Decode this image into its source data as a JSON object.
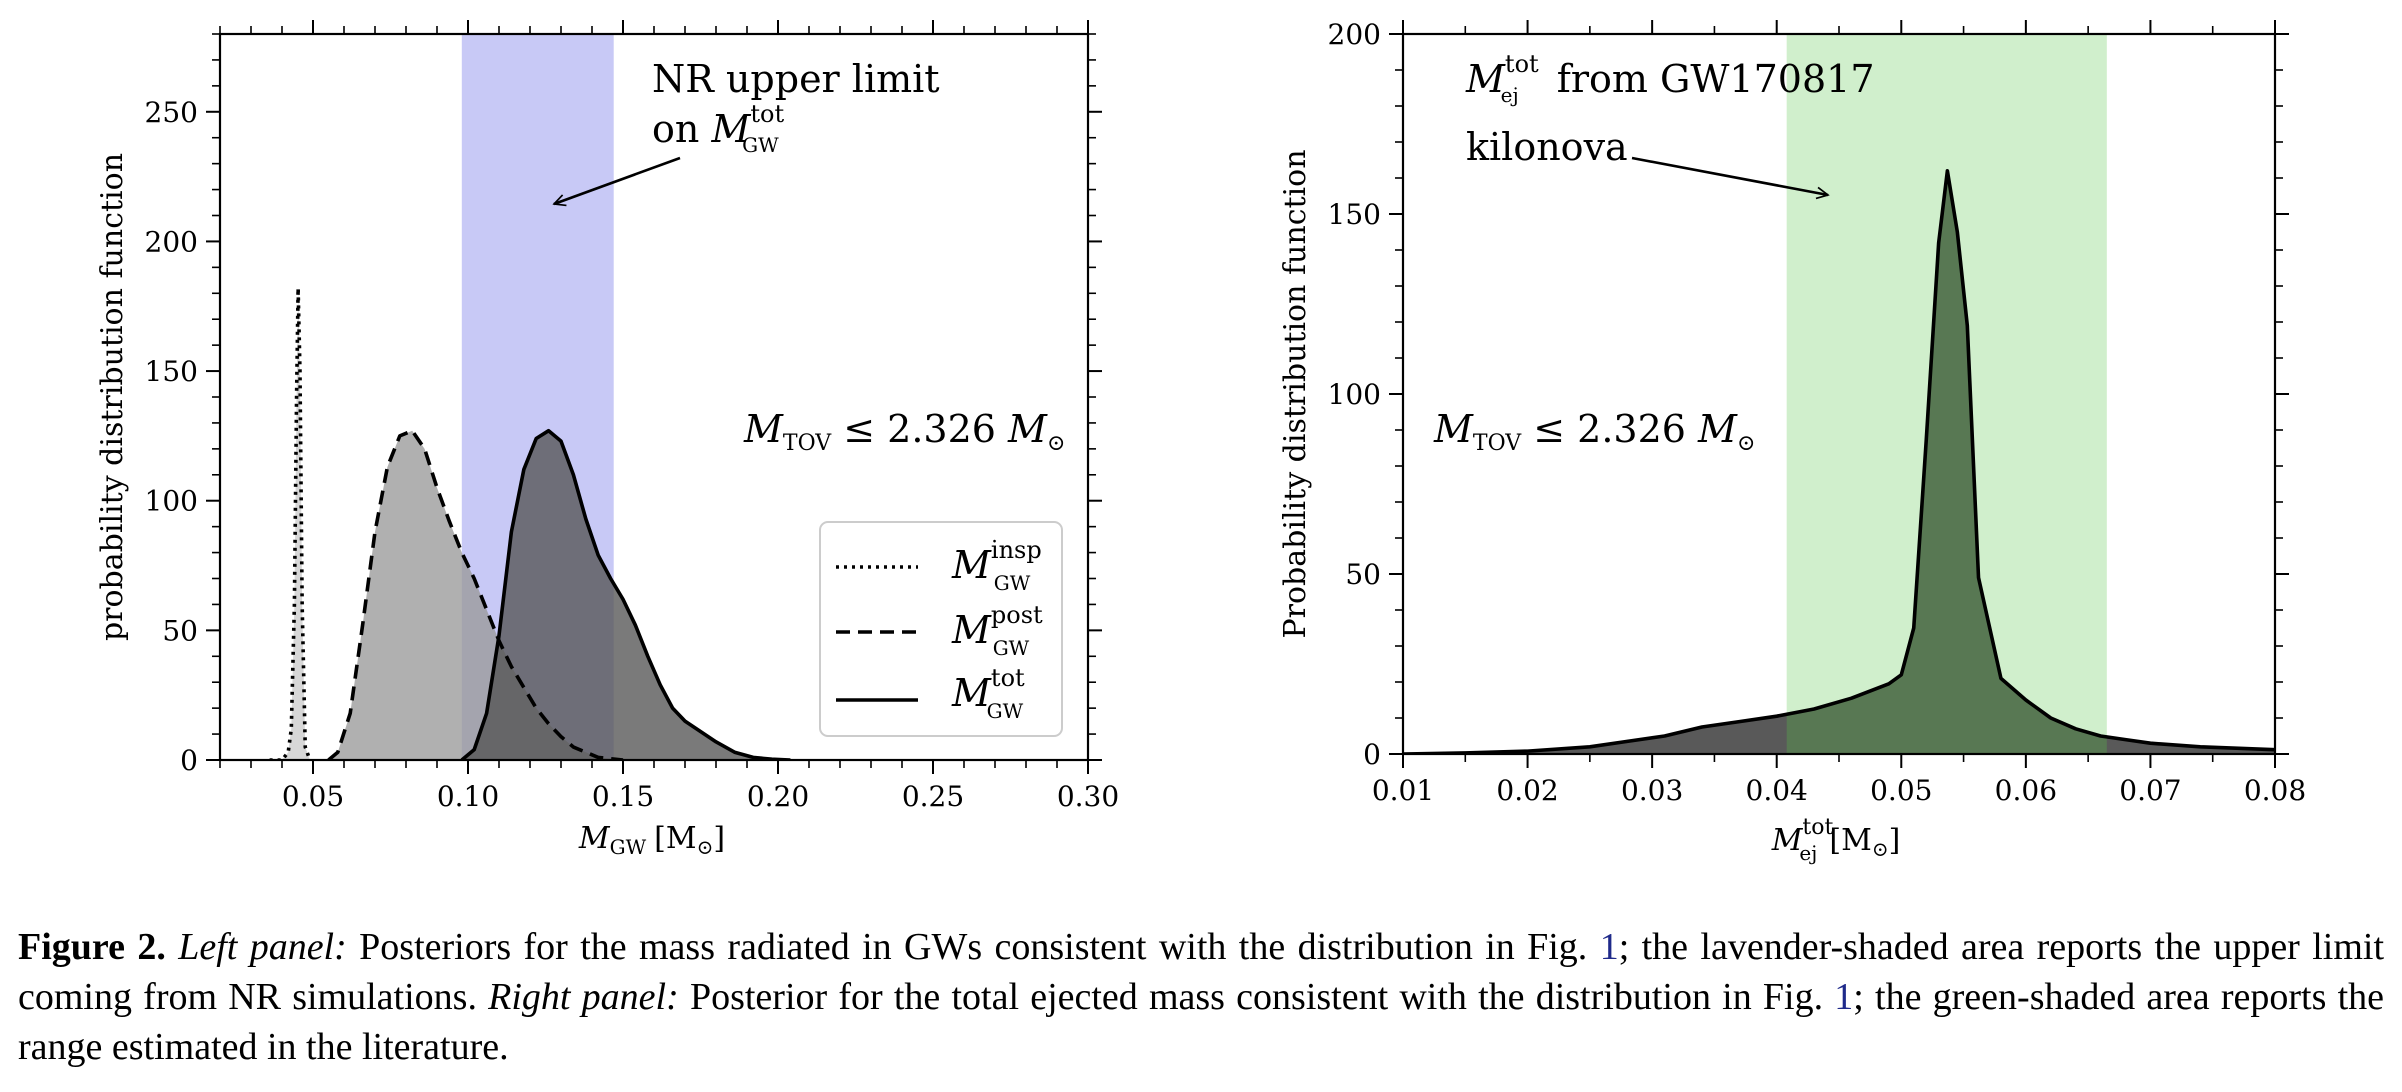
{
  "chart_data": [
    {
      "type": "area",
      "panel": "left",
      "xlabel": "M_GW [M_⊙]",
      "xlabel_main": "M",
      "xlabel_sub": "GW",
      "xlabel_unit": "[M",
      "xlabel_unit_sub": "⊙",
      "xlabel_unit_close": "]",
      "ylabel": "probability distribution function",
      "xlim": [
        0.02,
        0.3
      ],
      "ylim": [
        0,
        280
      ],
      "xticks": [
        0.05,
        0.1,
        0.15,
        0.2,
        0.25,
        0.3
      ],
      "xtick_labels": [
        "0.05",
        "0.10",
        "0.15",
        "0.20",
        "0.25",
        "0.30"
      ],
      "yticks": [
        0,
        50,
        100,
        150,
        200,
        250
      ],
      "ytick_labels": [
        "0",
        "50",
        "100",
        "150",
        "200",
        "250"
      ],
      "shaded_band": {
        "x0": 0.098,
        "x1": 0.147,
        "color": "#c8c9f6"
      },
      "annotations": {
        "nr_line1": "NR upper limit",
        "nr_line2_prefix": "on ",
        "nr_line2_main": "M",
        "nr_line2_sup": "tot",
        "nr_line2_sub": "GW",
        "tov_main": "M",
        "tov_sub": "TOV",
        "tov_rest": " ≤ 2.326 ",
        "tov_unit": "M",
        "tov_unit_sub": "⊙"
      },
      "legend_placement": "lower-right",
      "series": [
        {
          "name": "M_GW^insp",
          "legend_main": "M",
          "legend_sup": "insp",
          "legend_sub": "GW",
          "linestyle": "dotted",
          "fill": "#cccccc",
          "x": [
            0.036,
            0.04,
            0.042,
            0.043,
            0.044,
            0.0447,
            0.0452,
            0.0458,
            0.0465,
            0.0475,
            0.049
          ],
          "y": [
            0,
            0,
            3,
            12,
            60,
            140,
            182,
            150,
            60,
            5,
            0
          ]
        },
        {
          "name": "M_GW^post",
          "legend_main": "M",
          "legend_sup": "post",
          "legend_sub": "GW",
          "linestyle": "dashed",
          "fill": "#9a9a9a",
          "x": [
            0.055,
            0.058,
            0.062,
            0.066,
            0.07,
            0.074,
            0.078,
            0.082,
            0.086,
            0.09,
            0.094,
            0.098,
            0.102,
            0.106,
            0.11,
            0.114,
            0.118,
            0.122,
            0.126,
            0.13,
            0.134,
            0.138,
            0.142,
            0.146,
            0.15
          ],
          "y": [
            0,
            3,
            18,
            52,
            88,
            113,
            125,
            127,
            120,
            105,
            92,
            80,
            70,
            58,
            46,
            36,
            28,
            20,
            14,
            9,
            5,
            3,
            1,
            0.5,
            0
          ]
        },
        {
          "name": "M_GW^tot",
          "legend_main": "M",
          "legend_sup": "tot",
          "legend_sub": "GW",
          "linestyle": "solid",
          "fill": "#555555",
          "x": [
            0.098,
            0.102,
            0.106,
            0.11,
            0.114,
            0.118,
            0.122,
            0.126,
            0.13,
            0.134,
            0.138,
            0.142,
            0.146,
            0.15,
            0.154,
            0.158,
            0.162,
            0.166,
            0.17,
            0.175,
            0.18,
            0.186,
            0.192,
            0.198,
            0.204
          ],
          "y": [
            0,
            4,
            18,
            48,
            88,
            112,
            124,
            127,
            123,
            110,
            93,
            79,
            70,
            62,
            52,
            40,
            29,
            20,
            15,
            11,
            7,
            3,
            1,
            0.3,
            0
          ]
        }
      ]
    },
    {
      "type": "area",
      "panel": "right",
      "xlabel": "M_ej^tot [M_⊙]",
      "xlabel_main": "M",
      "xlabel_sup": "tot",
      "xlabel_sub": "ej",
      "xlabel_unit": "[M",
      "xlabel_unit_sub": "⊙",
      "xlabel_unit_close": "]",
      "ylabel": "Probability distribution function",
      "xlim": [
        0.01,
        0.08
      ],
      "ylim": [
        0,
        200
      ],
      "xticks": [
        0.01,
        0.02,
        0.03,
        0.04,
        0.05,
        0.06,
        0.07,
        0.08
      ],
      "xtick_labels": [
        "0.01",
        "0.02",
        "0.03",
        "0.04",
        "0.05",
        "0.06",
        "0.07",
        "0.08"
      ],
      "yticks": [
        0,
        50,
        100,
        150,
        200
      ],
      "ytick_labels": [
        "0",
        "50",
        "100",
        "150",
        "200"
      ],
      "shaded_band": {
        "x0": 0.0408,
        "x1": 0.0665,
        "color": "#d0efcc"
      },
      "annotations": {
        "kn_main": "M",
        "kn_sup": "tot",
        "kn_sub": "ej",
        "kn_rest": " from GW170817",
        "kn_line2": "kilonova",
        "tov_main": "M",
        "tov_sub": "TOV",
        "tov_rest": " ≤ 2.326 ",
        "tov_unit": "M",
        "tov_unit_sub": "⊙"
      },
      "series": [
        {
          "name": "",
          "linestyle": "solid",
          "fill_outside": "#595959",
          "fill_inside": "#587853",
          "x": [
            0.01,
            0.015,
            0.02,
            0.025,
            0.028,
            0.031,
            0.034,
            0.037,
            0.04,
            0.043,
            0.046,
            0.049,
            0.05,
            0.051,
            0.052,
            0.053,
            0.0537,
            0.0545,
            0.0553,
            0.0562,
            0.058,
            0.06,
            0.062,
            0.064,
            0.066,
            0.068,
            0.07,
            0.074,
            0.08
          ],
          "y": [
            0,
            0.3,
            0.8,
            2,
            3.5,
            5,
            7.5,
            9,
            10.5,
            12.5,
            15.5,
            19.5,
            22,
            35,
            87,
            142,
            162,
            145,
            119,
            49,
            21,
            15,
            10,
            7,
            5,
            4,
            3,
            2,
            1.2
          ]
        }
      ]
    }
  ],
  "caption": {
    "fig_label": "Figure 2.",
    "left_label": "Left panel:",
    "left_text_1": " Posteriors for the mass radiated in GWs consistent with the distribution in Fig. ",
    "ref1": "1",
    "left_text_2": "; the lavender-shaded area reports the upper limit coming from NR simulations. ",
    "right_label": "Right panel:",
    "right_text_1": " Posterior for the total ejected mass consistent with the distribution in Fig. ",
    "ref2": "1",
    "right_text_2": "; the green-shaded area reports the range estimated in the literature."
  }
}
